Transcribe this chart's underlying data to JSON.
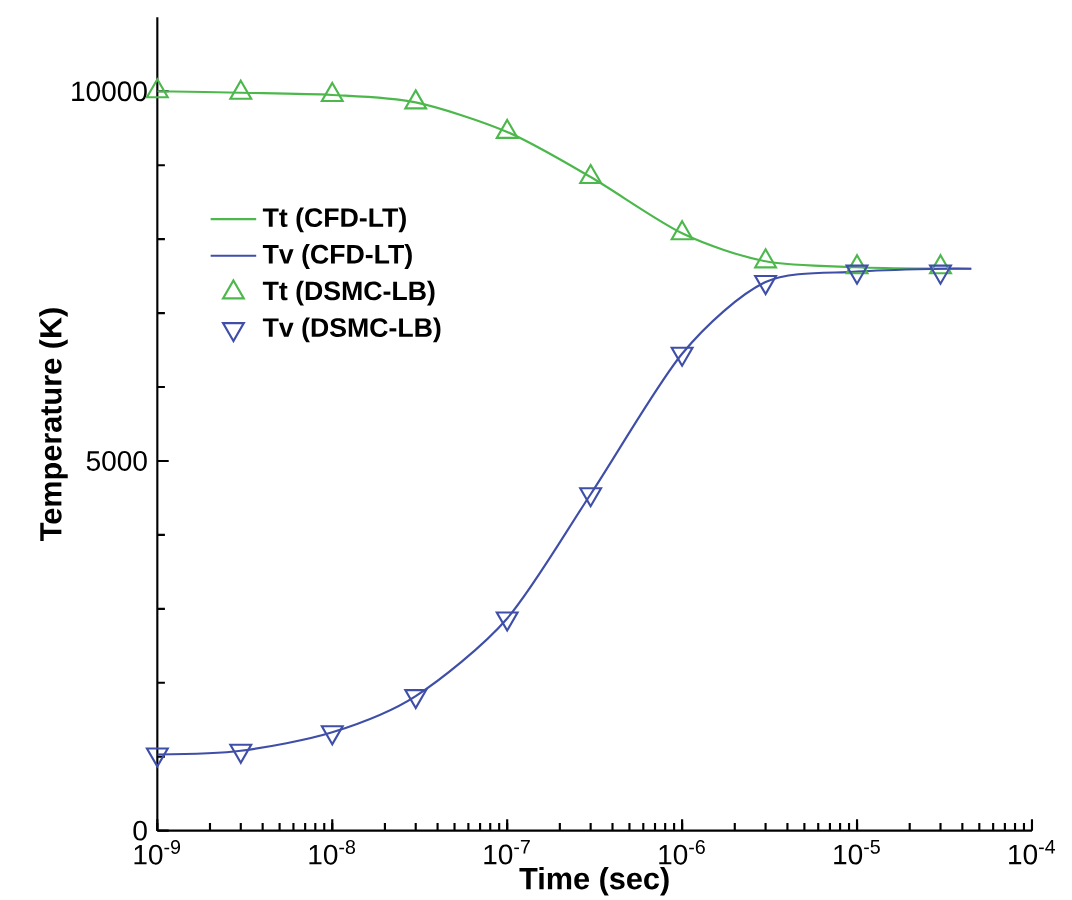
{
  "chart_data": {
    "type": "line",
    "xlabel": "Time (sec)",
    "ylabel": "Temperature (K)",
    "log": "x",
    "xlim": [
      1e-09,
      0.0001
    ],
    "ylim": [
      0,
      11000
    ],
    "xticks": [
      {
        "value": 1e-09,
        "label": "10$^{-9}$"
      },
      {
        "value": 1e-08,
        "label": "10$^{-8}$"
      },
      {
        "value": 1e-07,
        "label": "10$^{-7}$"
      },
      {
        "value": 1e-06,
        "label": "10$^{-6}$"
      },
      {
        "value": 1e-05,
        "label": "10$^{-5}$"
      },
      {
        "value": 0.0001,
        "label": "10$^{-4}$"
      }
    ],
    "yticks": [
      0,
      5000,
      10000
    ],
    "grid": false,
    "legend": "left",
    "series": [
      {
        "name": "Tt (CFD-LT)",
        "color": "#4cb84c",
        "marker": "none",
        "x": [
          1e-09,
          3e-09,
          1e-08,
          3e-08,
          1e-07,
          3e-07,
          1e-06,
          3e-06,
          1e-05,
          3e-05,
          4.5e-05
        ],
        "values": [
          10000,
          9980,
          9950,
          9850,
          9450,
          8840,
          8080,
          7700,
          7620,
          7600,
          7600
        ]
      },
      {
        "name": "Tv (CFD-LT)",
        "color": "#3f4fa8",
        "marker": "none",
        "x": [
          1e-09,
          3e-09,
          1e-08,
          3e-08,
          1e-07,
          3e-07,
          1e-06,
          3e-06,
          1e-05,
          3e-05,
          4.5e-05
        ],
        "values": [
          1030,
          1080,
          1330,
          1820,
          2870,
          4550,
          6450,
          7420,
          7560,
          7600,
          7600
        ]
      },
      {
        "name": "Tt (DSMC-LB)",
        "type": "scatter",
        "color": "#4cb84c",
        "marker": "triangle",
        "x": [
          1e-09,
          3e-09,
          1e-08,
          3e-08,
          1e-07,
          3e-07,
          1e-06,
          3e-06,
          1e-05,
          3e-05
        ],
        "values": [
          10000,
          9980,
          9950,
          9850,
          9450,
          8840,
          8080,
          7700,
          7620,
          7620
        ]
      },
      {
        "name": "Tv (DSMC-LB)",
        "type": "scatter",
        "color": "#3f4fa8",
        "marker": "triangle-down",
        "x": [
          1e-09,
          3e-09,
          1e-08,
          3e-08,
          1e-07,
          3e-07,
          1e-06,
          3e-06,
          1e-05,
          3e-05
        ],
        "values": [
          1030,
          1080,
          1330,
          1820,
          2870,
          4550,
          6450,
          7420,
          7560,
          7560
        ]
      }
    ]
  }
}
